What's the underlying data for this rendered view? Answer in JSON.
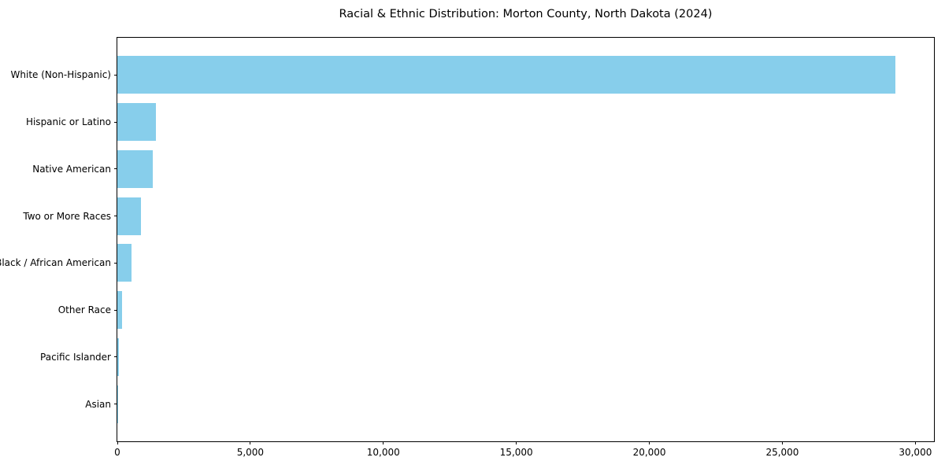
{
  "chart_data": {
    "type": "bar",
    "orientation": "horizontal",
    "title": "Racial & Ethnic Distribution: Morton County, North Dakota (2024)",
    "categories": [
      "White (Non-Hispanic)",
      "Hispanic or Latino",
      "Native American",
      "Two or More Races",
      "Black / African American",
      "Other Race",
      "Pacific Islander",
      "Asian"
    ],
    "values": [
      29250,
      1450,
      1330,
      890,
      530,
      180,
      50,
      30
    ],
    "xlabel": "",
    "ylabel": "",
    "xlim": [
      0,
      30700
    ],
    "xticks": [
      0,
      5000,
      10000,
      15000,
      20000,
      25000,
      30000
    ],
    "grid": false,
    "legend": "none",
    "bar_color": "#87CEEB",
    "axis_color": "#000000",
    "background_color": "#FFFFFF"
  }
}
